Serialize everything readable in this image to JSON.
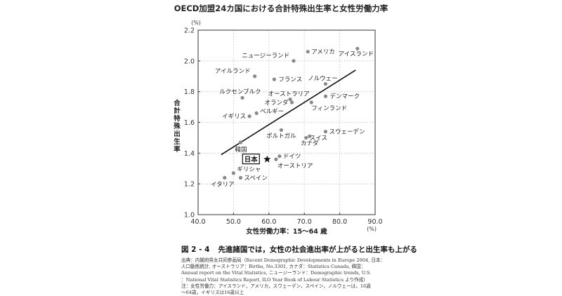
{
  "chart_data": {
    "type": "scatter",
    "title": "OECD加盟24カ国における合計特殊出生率と女性労働力率",
    "xlabel": "女性労働力率：15〜64 歳",
    "ylabel": "合計特殊出生率",
    "x_unit": "(%)",
    "y_unit": "(%)",
    "xlim": [
      40,
      90
    ],
    "ylim": [
      1.0,
      2.2
    ],
    "x_ticks": [
      40,
      50,
      60,
      70,
      80,
      90
    ],
    "x_tick_labels": [
      "40.0",
      "50.0",
      "60.0",
      "70.0",
      "80.0",
      "90.0"
    ],
    "y_ticks": [
      1.0,
      1.2,
      1.4,
      1.6,
      1.8,
      2.0,
      2.2
    ],
    "y_tick_labels": [
      "1.0",
      "1.2",
      "1.4",
      "1.6",
      "1.8",
      "2.0",
      "2.2"
    ],
    "grid": true,
    "trendline": {
      "x": [
        46.5,
        84.5
      ],
      "y": [
        1.39,
        1.94
      ]
    },
    "points": [
      {
        "label": "アメリカ",
        "x": 71.0,
        "y": 2.06
      },
      {
        "label": "アイスランド",
        "x": 85.0,
        "y": 2.08
      },
      {
        "label": "ニュージーランド",
        "x": 67.0,
        "y": 2.0
      },
      {
        "label": "アイルランド",
        "x": 56.0,
        "y": 1.9
      },
      {
        "label": "フランス",
        "x": 61.5,
        "y": 1.88
      },
      {
        "label": "ノルウェー",
        "x": 76.0,
        "y": 1.85
      },
      {
        "label": "ルクセンブルク",
        "x": 52.5,
        "y": 1.76
      },
      {
        "label": "オーストラリア",
        "x": 66.0,
        "y": 1.75
      },
      {
        "label": "デンマーク",
        "x": 76.0,
        "y": 1.77
      },
      {
        "label": "オランダ",
        "x": 66.5,
        "y": 1.73
      },
      {
        "label": "フィンランド",
        "x": 72.0,
        "y": 1.73
      },
      {
        "label": "イギリス",
        "x": 54.5,
        "y": 1.64
      },
      {
        "label": "ベルギー",
        "x": 56.5,
        "y": 1.66
      },
      {
        "label": "ポルトガル",
        "x": 63.5,
        "y": 1.55
      },
      {
        "label": "スウェーデン",
        "x": 76.0,
        "y": 1.54
      },
      {
        "label": "スイス",
        "x": 70.5,
        "y": 1.5
      },
      {
        "label": "カナダ",
        "x": 71.5,
        "y": 1.51
      },
      {
        "label": "韓国",
        "x": 52.0,
        "y": 1.47
      },
      {
        "label": "ドイツ",
        "x": 63.0,
        "y": 1.38
      },
      {
        "label": "オーストリア",
        "x": 62.0,
        "y": 1.36
      },
      {
        "label": "日本",
        "x": 59.5,
        "y": 1.36
      },
      {
        "label": "ギリシャ",
        "x": 50.0,
        "y": 1.27
      },
      {
        "label": "イタリア",
        "x": 47.5,
        "y": 1.24
      },
      {
        "label": "スペイン",
        "x": 52.0,
        "y": 1.24
      }
    ]
  },
  "caption": {
    "figure_number": "図 2 - 4",
    "figure_title": "先進諸国では，女性の社会進出率が上がると出生率も上がる",
    "source_lines": [
      "出典：内閣府男女共同参画局（Recent Demographic Developments in Europe 2004, 日本：",
      "人口動態統計, オーストラリア：Births, No.3301, カナダ：Statistics Canada, 韓国：",
      "Annual report on the Vital Statistics, ニュージーランド：Demographic trends, U.S.",
      "：National Vital Statistics Report, ILO Year Book of Labour Statistics より作成）",
      "注：女性労働力：アイスランド，アメリカ，スウェーデン，スペイン，ノルウェーは，16歳",
      "〜64歳，イギリスは16歳以上"
    ]
  }
}
